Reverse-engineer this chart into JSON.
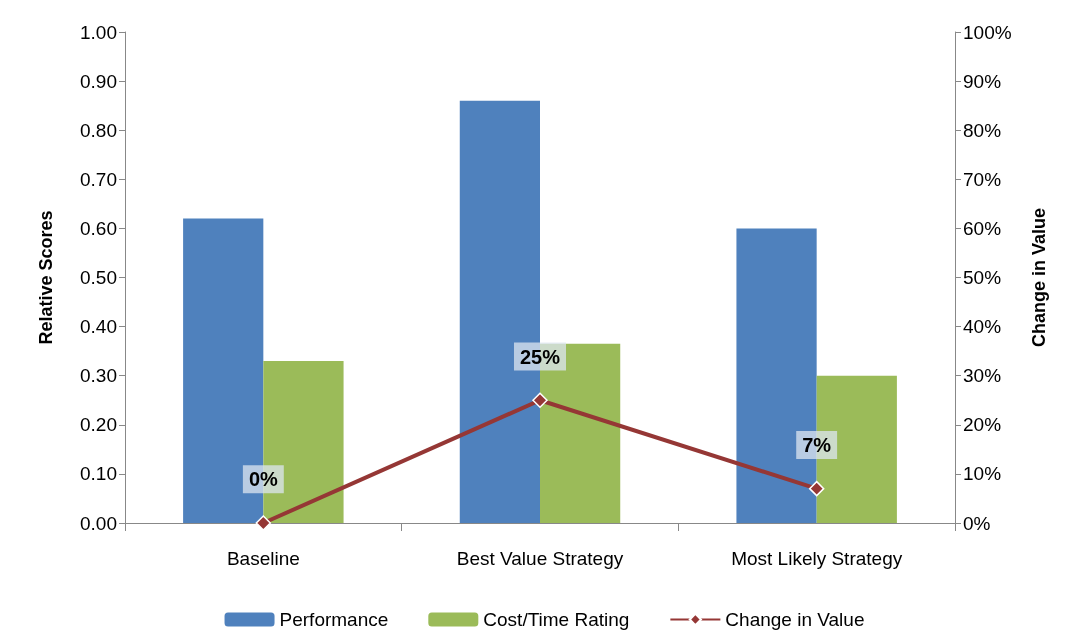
{
  "chart_data": {
    "type": "bar",
    "categories": [
      "Baseline",
      "Best Value Strategy",
      "Most Likely Strategy"
    ],
    "ylabel": "Relative Scores",
    "y2label": "Change in Value",
    "ylim": [
      0,
      1
    ],
    "yticks": [
      {
        "value": 0,
        "label": "0.00"
      },
      {
        "value": 0.1,
        "label": "0.10"
      },
      {
        "value": 0.2,
        "label": "0.20"
      },
      {
        "value": 0.3,
        "label": "0.30"
      },
      {
        "value": 0.4,
        "label": "0.40"
      },
      {
        "value": 0.5,
        "label": "0.50"
      },
      {
        "value": 0.6,
        "label": "0.60"
      },
      {
        "value": 0.7,
        "label": "0.70"
      },
      {
        "value": 0.8,
        "label": "0.80"
      },
      {
        "value": 0.9,
        "label": "0.90"
      },
      {
        "value": 1,
        "label": "1.00"
      }
    ],
    "y2lim": [
      0,
      100
    ],
    "y2ticks": [
      {
        "value": 0,
        "label": "0%"
      },
      {
        "value": 10,
        "label": "10%"
      },
      {
        "value": 20,
        "label": "20%"
      },
      {
        "value": 30,
        "label": "30%"
      },
      {
        "value": 40,
        "label": "40%"
      },
      {
        "value": 50,
        "label": "50%"
      },
      {
        "value": 60,
        "label": "60%"
      },
      {
        "value": 70,
        "label": "70%"
      },
      {
        "value": 80,
        "label": "80%"
      },
      {
        "value": 90,
        "label": "90%"
      },
      {
        "value": 100,
        "label": "100%"
      }
    ],
    "grid": false,
    "legend": "bottom",
    "series": [
      {
        "name": "Performance",
        "color": "#4f81bd",
        "values": [
          0.62,
          0.86,
          0.6
        ]
      },
      {
        "name": "Cost/Time Rating",
        "color": "#9bbb59",
        "values": [
          0.33,
          0.365,
          0.3
        ]
      },
      {
        "name": "Change in Value",
        "type": "line",
        "axis": "y2",
        "color": "#953735",
        "marker": "diamond",
        "line_style": "solid",
        "values": [
          0,
          25,
          7
        ],
        "value_labels": [
          "0%",
          "25%",
          "7%"
        ]
      }
    ]
  }
}
